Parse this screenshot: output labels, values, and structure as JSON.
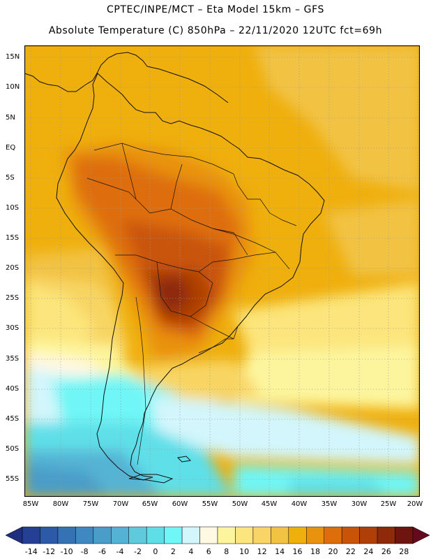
{
  "header": {
    "line1": "CPTEC/INPE/MCT –  Eta Model 15km – GFS",
    "line2": "Absolute Temperature (C) 850hPa – 22/11/2020 12UTC fct=69h"
  },
  "lat_ticks": [
    "15N",
    "10N",
    "5N",
    "EQ",
    "5S",
    "10S",
    "15S",
    "20S",
    "25S",
    "30S",
    "35S",
    "40S",
    "45S",
    "50S",
    "55S"
  ],
  "lon_ticks": [
    "85W",
    "80W",
    "75W",
    "70W",
    "65W",
    "60W",
    "55W",
    "50W",
    "45W",
    "40W",
    "35W",
    "30W",
    "25W",
    "20W"
  ],
  "colorbar": {
    "labels": [
      "-14",
      "-12",
      "-10",
      "-8",
      "-6",
      "-4",
      "-2",
      "0",
      "2",
      "4",
      "6",
      "8",
      "10",
      "12",
      "14",
      "16",
      "18",
      "20",
      "22",
      "24",
      "26",
      "28"
    ],
    "colors": [
      "#243f94",
      "#2c5aa6",
      "#3572b4",
      "#3f88c1",
      "#4a9dc9",
      "#54b3d4",
      "#5ecadc",
      "#5edfe8",
      "#6ff6f6",
      "#d2f6fb",
      "#fff8e3",
      "#fdf59d",
      "#fce57c",
      "#f8d564",
      "#f2c242",
      "#efaf0d",
      "#e9920e",
      "#de6e09",
      "#c95407",
      "#af3f06",
      "#8e2909",
      "#6e1510"
    ],
    "under_color": "#1e2f80",
    "over_color": "#650a1e"
  }
}
